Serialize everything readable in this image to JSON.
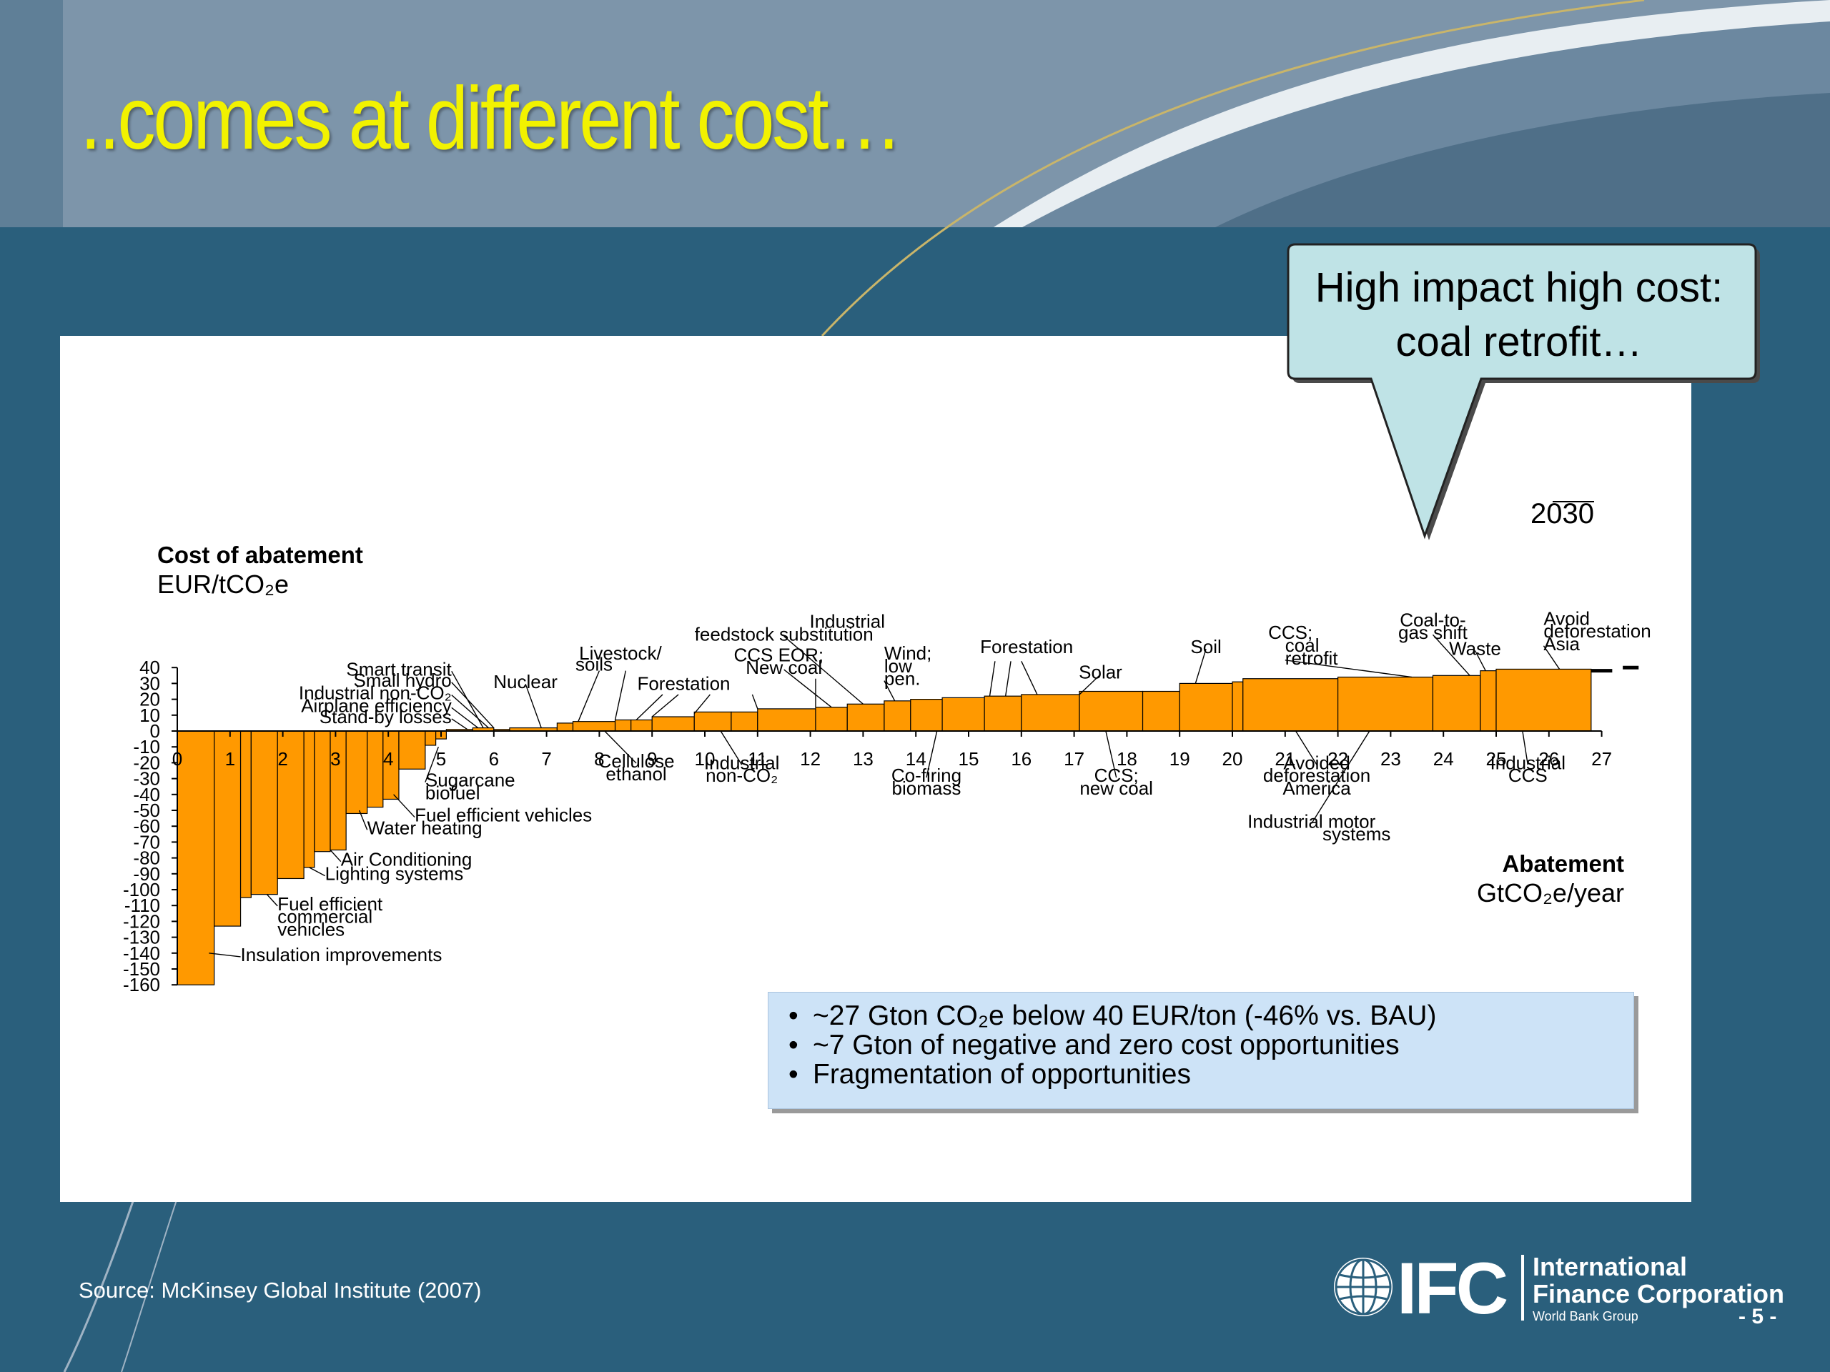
{
  "slide": {
    "title": "..comes at different cost…",
    "callout": "High impact high cost: coal retrofit…",
    "source": "Source:  McKinsey Global Institute (2007)",
    "page_number": "- 5 -",
    "logo": {
      "mark": "IFC",
      "line1": "International",
      "line2": "Finance Corporation",
      "line3": "World Bank Group",
      "icon": "globe-icon"
    },
    "summary_bullets": [
      "~27 Gton CO₂e below 40 EUR/ton (-46% vs. BAU)",
      "~7 Gton of negative and zero cost opportunities",
      "Fragmentation of opportunities"
    ],
    "colors": {
      "background": "#2a5f7c",
      "header_band": "#7d95aa",
      "title": "#f2f200",
      "bar_fill": "#ff9900",
      "callout_fill": "#bfe3e6",
      "summary_fill": "#cde3f7"
    }
  },
  "chart_data": {
    "type": "bar",
    "subtype": "marginal abatement cost curve (variable-width bars)",
    "year_label": "2030",
    "ylabel_line1": "Cost of abatement",
    "ylabel_line2": "EUR/tCO₂e",
    "xlabel_line1": "Abatement",
    "xlabel_line2": "GtCO₂e/year",
    "ylim": [
      -160,
      40
    ],
    "xlim": [
      0,
      27
    ],
    "y_ticks": [
      40,
      30,
      20,
      10,
      0,
      -10,
      -20,
      -30,
      -40,
      -50,
      -60,
      -70,
      -80,
      -90,
      -100,
      -110,
      -120,
      -130,
      -140,
      -150,
      -160
    ],
    "x_ticks": [
      0,
      1,
      2,
      3,
      4,
      5,
      6,
      7,
      8,
      9,
      10,
      11,
      12,
      13,
      14,
      15,
      16,
      17,
      18,
      19,
      20,
      21,
      22,
      23,
      24,
      25,
      26,
      27
    ],
    "bars": [
      {
        "x0": 0.0,
        "x1": 0.7,
        "cost": -160
      },
      {
        "x0": 0.7,
        "x1": 1.2,
        "cost": -123
      },
      {
        "x0": 1.2,
        "x1": 1.4,
        "cost": -105
      },
      {
        "x0": 1.4,
        "x1": 1.9,
        "cost": -103
      },
      {
        "x0": 1.9,
        "x1": 2.4,
        "cost": -93
      },
      {
        "x0": 2.4,
        "x1": 2.6,
        "cost": -86
      },
      {
        "x0": 2.6,
        "x1": 2.9,
        "cost": -76
      },
      {
        "x0": 2.9,
        "x1": 3.2,
        "cost": -75
      },
      {
        "x0": 3.2,
        "x1": 3.6,
        "cost": -52
      },
      {
        "x0": 3.6,
        "x1": 3.9,
        "cost": -48
      },
      {
        "x0": 3.9,
        "x1": 4.2,
        "cost": -43
      },
      {
        "x0": 4.2,
        "x1": 4.7,
        "cost": -24
      },
      {
        "x0": 4.7,
        "x1": 4.9,
        "cost": -9
      },
      {
        "x0": 4.9,
        "x1": 5.1,
        "cost": -5
      },
      {
        "x0": 5.1,
        "x1": 5.6,
        "cost": 1
      },
      {
        "x0": 5.6,
        "x1": 6.0,
        "cost": 2
      },
      {
        "x0": 6.0,
        "x1": 6.3,
        "cost": 1
      },
      {
        "x0": 6.3,
        "x1": 7.2,
        "cost": 2
      },
      {
        "x0": 7.2,
        "x1": 7.5,
        "cost": 5
      },
      {
        "x0": 7.5,
        "x1": 8.3,
        "cost": 6
      },
      {
        "x0": 8.3,
        "x1": 8.6,
        "cost": 7
      },
      {
        "x0": 8.6,
        "x1": 9.0,
        "cost": 7
      },
      {
        "x0": 9.0,
        "x1": 9.8,
        "cost": 9
      },
      {
        "x0": 9.8,
        "x1": 10.5,
        "cost": 12
      },
      {
        "x0": 10.5,
        "x1": 11.0,
        "cost": 12
      },
      {
        "x0": 11.0,
        "x1": 12.1,
        "cost": 14
      },
      {
        "x0": 12.1,
        "x1": 12.7,
        "cost": 15
      },
      {
        "x0": 12.7,
        "x1": 13.4,
        "cost": 17
      },
      {
        "x0": 13.4,
        "x1": 13.9,
        "cost": 19
      },
      {
        "x0": 13.9,
        "x1": 14.5,
        "cost": 20
      },
      {
        "x0": 14.5,
        "x1": 15.3,
        "cost": 21
      },
      {
        "x0": 15.3,
        "x1": 16.0,
        "cost": 22
      },
      {
        "x0": 16.0,
        "x1": 17.1,
        "cost": 23
      },
      {
        "x0": 17.1,
        "x1": 18.3,
        "cost": 25
      },
      {
        "x0": 18.3,
        "x1": 19.0,
        "cost": 25
      },
      {
        "x0": 19.0,
        "x1": 20.0,
        "cost": 30
      },
      {
        "x0": 20.0,
        "x1": 20.2,
        "cost": 31
      },
      {
        "x0": 20.2,
        "x1": 22.0,
        "cost": 33
      },
      {
        "x0": 22.0,
        "x1": 23.8,
        "cost": 34
      },
      {
        "x0": 23.8,
        "x1": 24.7,
        "cost": 35
      },
      {
        "x0": 24.7,
        "x1": 25.0,
        "cost": 38
      },
      {
        "x0": 25.0,
        "x1": 26.8,
        "cost": 39
      }
    ],
    "tail_segments": [
      {
        "x0": 26.8,
        "x1": 27.2,
        "cost": 38
      },
      {
        "x0": 27.4,
        "x1": 27.7,
        "cost": 40
      }
    ],
    "labels": [
      {
        "text": "Smart transit",
        "x": 5.2,
        "y": 35,
        "tip": [
          5.8,
          2
        ],
        "align": "end"
      },
      {
        "text": "Small hydro",
        "x": 5.2,
        "y": 28,
        "tip": [
          6.0,
          2
        ],
        "align": "end"
      },
      {
        "text": "Industrial non-CO₂",
        "x": 5.2,
        "y": 20,
        "tip": [
          5.9,
          2
        ],
        "align": "end"
      },
      {
        "text": "Airplane efficiency",
        "x": 5.2,
        "y": 12,
        "tip": [
          5.7,
          2
        ],
        "align": "end"
      },
      {
        "text": "Stand-by losses",
        "x": 5.2,
        "y": 5,
        "tip": [
          5.5,
          1
        ],
        "align": "end"
      },
      {
        "text": "Nuclear",
        "x": 6.6,
        "y": 27,
        "tip": [
          6.9,
          2
        ],
        "align": "middle"
      },
      {
        "text": "Livestock/",
        "x": 8.4,
        "y": 45,
        "tip": null,
        "align": "middle"
      },
      {
        "text": "soils",
        "x": 7.9,
        "y": 38,
        "tip": null,
        "align": "middle"
      },
      {
        "text": "Industrial",
        "x": 12.7,
        "y": 65,
        "tip": null,
        "align": "middle"
      },
      {
        "text": "feedstock substitution",
        "x": 11.5,
        "y": 57,
        "tip": [
          13.0,
          17
        ],
        "align": "middle"
      },
      {
        "text": "CCS EOR;",
        "x": 11.4,
        "y": 44,
        "tip": null,
        "align": "middle"
      },
      {
        "text": "New coal",
        "x": 11.5,
        "y": 36,
        "tip": [
          12.4,
          15
        ],
        "align": "middle"
      },
      {
        "text": "Forestation",
        "x": 9.6,
        "y": 26,
        "tip": null,
        "align": "middle"
      },
      {
        "text": "Wind;",
        "x": 13.4,
        "y": 45,
        "tip": null,
        "align": "start"
      },
      {
        "text": "low",
        "x": 13.4,
        "y": 37,
        "tip": null,
        "align": "start"
      },
      {
        "text": "pen.",
        "x": 13.4,
        "y": 29,
        "tip": [
          13.6,
          19
        ],
        "align": "start"
      },
      {
        "text": "Forestation",
        "x": 16.1,
        "y": 49,
        "tip": null,
        "align": "middle"
      },
      {
        "text": "Solar",
        "x": 17.5,
        "y": 33,
        "tip": [
          17.1,
          23
        ],
        "align": "middle"
      },
      {
        "text": "Soil",
        "x": 19.5,
        "y": 49,
        "tip": [
          19.3,
          30
        ],
        "align": "middle"
      },
      {
        "text": "CCS;",
        "x": 21.1,
        "y": 58,
        "tip": null,
        "align": "middle"
      },
      {
        "text": "coal",
        "x": 21.0,
        "y": 50,
        "tip": null,
        "align": "start"
      },
      {
        "text": "retrofit",
        "x": 21.0,
        "y": 42,
        "tip": [
          23.4,
          34
        ],
        "align": "start"
      },
      {
        "text": "Coal-to-",
        "x": 23.8,
        "y": 66,
        "tip": null,
        "align": "middle"
      },
      {
        "text": "gas shift",
        "x": 23.8,
        "y": 58,
        "tip": [
          24.5,
          35
        ],
        "align": "middle"
      },
      {
        "text": "Waste",
        "x": 24.6,
        "y": 48,
        "tip": [
          24.8,
          38
        ],
        "align": "middle"
      },
      {
        "text": "Avoid",
        "x": 25.9,
        "y": 67,
        "tip": null,
        "align": "start"
      },
      {
        "text": "deforestation",
        "x": 25.9,
        "y": 59,
        "tip": null,
        "align": "start"
      },
      {
        "text": "Asia",
        "x": 25.9,
        "y": 51,
        "tip": [
          26.2,
          39
        ],
        "align": "start"
      },
      {
        "text": "Cellulose",
        "x": 8.7,
        "y": -23,
        "tip": [
          8.1,
          0
        ],
        "align": "middle"
      },
      {
        "text": "ethanol",
        "x": 8.7,
        "y": -31,
        "tip": null,
        "align": "middle"
      },
      {
        "text": "Industrial",
        "x": 10.7,
        "y": -24,
        "tip": [
          10.3,
          0
        ],
        "align": "middle"
      },
      {
        "text": "non-CO₂",
        "x": 10.7,
        "y": -32,
        "tip": null,
        "align": "middle"
      },
      {
        "text": "Co-firing",
        "x": 14.2,
        "y": -32,
        "tip": [
          14.4,
          0
        ],
        "align": "middle"
      },
      {
        "text": "biomass",
        "x": 14.2,
        "y": -40,
        "tip": null,
        "align": "middle"
      },
      {
        "text": "CCS;",
        "x": 17.8,
        "y": -32,
        "tip": [
          17.6,
          0
        ],
        "align": "middle"
      },
      {
        "text": "new coal",
        "x": 17.8,
        "y": -40,
        "tip": null,
        "align": "middle"
      },
      {
        "text": "Avoided",
        "x": 21.6,
        "y": -24,
        "tip": [
          21.2,
          0
        ],
        "align": "middle"
      },
      {
        "text": "deforestation",
        "x": 21.6,
        "y": -32,
        "tip": null,
        "align": "middle"
      },
      {
        "text": "America",
        "x": 21.6,
        "y": -40,
        "tip": null,
        "align": "middle"
      },
      {
        "text": "Industrial",
        "x": 25.6,
        "y": -24,
        "tip": [
          25.5,
          0
        ],
        "align": "middle"
      },
      {
        "text": "CCS",
        "x": 25.6,
        "y": -32,
        "tip": null,
        "align": "middle"
      },
      {
        "text": "Industrial motor",
        "x": 21.5,
        "y": -61,
        "tip": [
          22.6,
          0
        ],
        "align": "middle"
      },
      {
        "text": "systems",
        "x": 23.0,
        "y": -69,
        "tip": null,
        "align": "end"
      },
      {
        "text": "Sugarcane",
        "x": 4.7,
        "y": -35,
        "tip": [
          4.95,
          -10
        ],
        "align": "start"
      },
      {
        "text": "biofuel",
        "x": 4.7,
        "y": -43,
        "tip": null,
        "align": "start"
      },
      {
        "text": "Fuel efficient vehicles",
        "x": 4.5,
        "y": -57,
        "tip": [
          4.1,
          -40
        ],
        "align": "start"
      },
      {
        "text": "Water heating",
        "x": 3.6,
        "y": -65,
        "tip": [
          3.45,
          -50
        ],
        "align": "start"
      },
      {
        "text": "Air Conditioning",
        "x": 3.1,
        "y": -85,
        "tip": [
          2.9,
          -75
        ],
        "align": "start"
      },
      {
        "text": "Lighting systems",
        "x": 2.8,
        "y": -94,
        "tip": [
          2.5,
          -86
        ],
        "align": "start"
      },
      {
        "text": "Fuel efficient",
        "x": 1.9,
        "y": -113,
        "tip": [
          1.7,
          -103
        ],
        "align": "start"
      },
      {
        "text": "commercial",
        "x": 1.9,
        "y": -121,
        "tip": null,
        "align": "start"
      },
      {
        "text": "vehicles",
        "x": 1.9,
        "y": -129,
        "tip": null,
        "align": "start"
      },
      {
        "text": "Insulation improvements",
        "x": 1.2,
        "y": -145,
        "tip": [
          0.6,
          -140
        ],
        "align": "start"
      }
    ],
    "extra_leaders": [
      {
        "from": [
          8.0,
          38
        ],
        "to": [
          7.6,
          6
        ]
      },
      {
        "from": [
          8.5,
          38
        ],
        "to": [
          8.3,
          7
        ]
      },
      {
        "from": [
          9.2,
          23
        ],
        "to": [
          8.7,
          7
        ]
      },
      {
        "from": [
          9.5,
          23
        ],
        "to": [
          9.0,
          9
        ]
      },
      {
        "from": [
          10.1,
          23
        ],
        "to": [
          9.8,
          11
        ]
      },
      {
        "from": [
          10.9,
          23
        ],
        "to": [
          11.0,
          14
        ]
      },
      {
        "from": [
          15.5,
          44
        ],
        "to": [
          15.4,
          22
        ]
      },
      {
        "from": [
          15.8,
          44
        ],
        "to": [
          15.7,
          22
        ]
      },
      {
        "from": [
          16.0,
          44
        ],
        "to": [
          16.3,
          23
        ]
      },
      {
        "from": [
          12.1,
          33
        ],
        "to": [
          12.1,
          15
        ]
      }
    ]
  }
}
